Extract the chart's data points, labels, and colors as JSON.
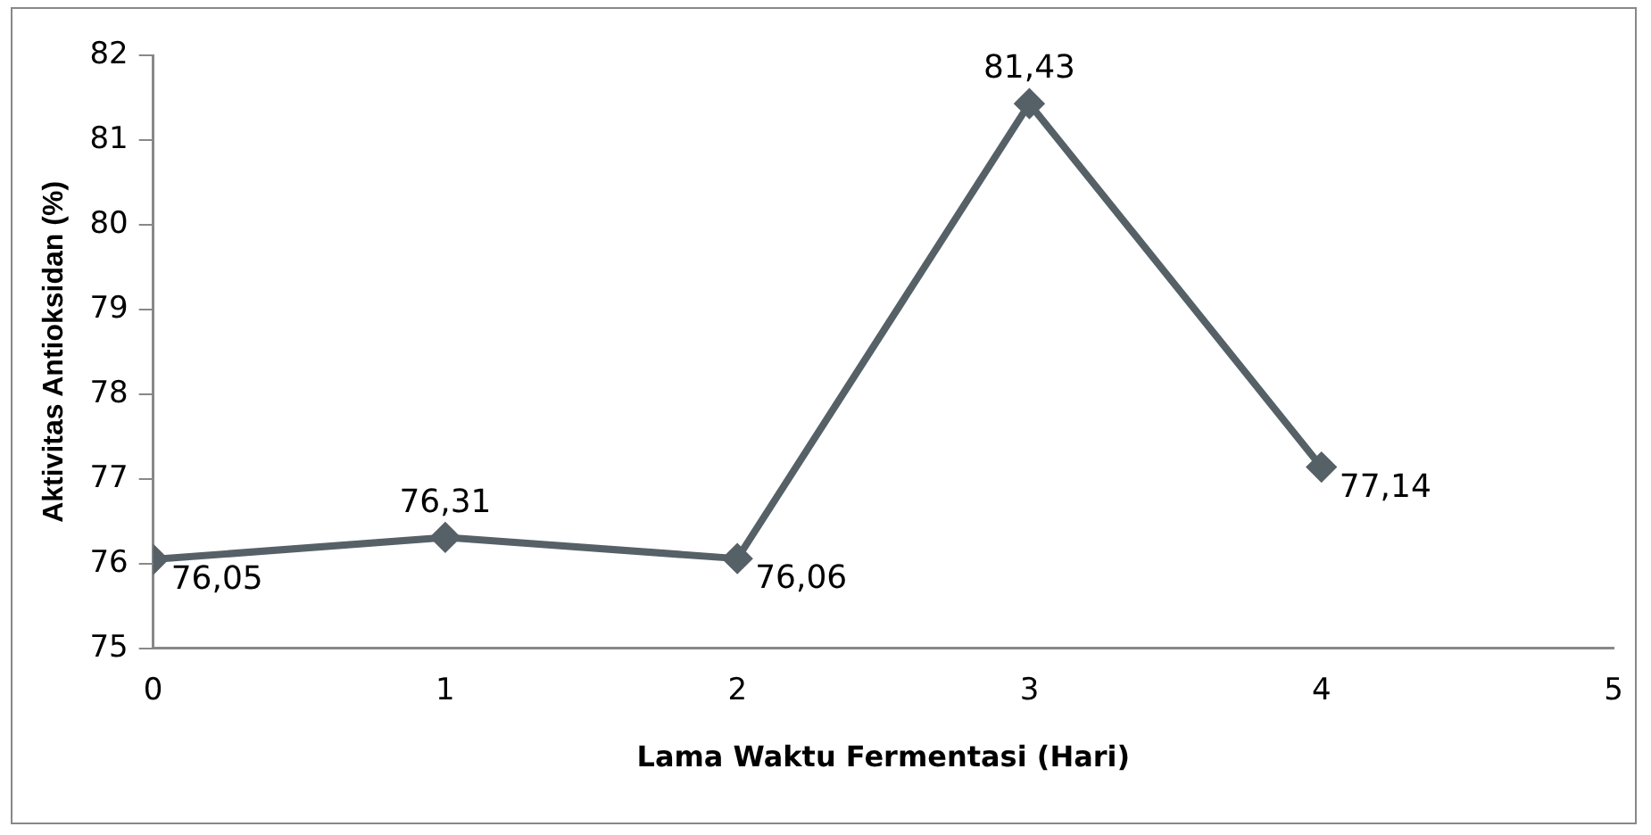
{
  "chart_data": {
    "type": "line",
    "xlabel": "Lama Waktu Fermentasi (Hari)",
    "ylabel": "Aktivitas Antioksidan (%)",
    "x": [
      0,
      1,
      2,
      3,
      4
    ],
    "series": [
      {
        "color": "#566167",
        "values": [
          76.05,
          76.31,
          76.06,
          81.43,
          77.14
        ],
        "value_labels": [
          "76,05",
          "76,31",
          "76,06",
          "81,43",
          "77,14"
        ]
      }
    ],
    "xlim": [
      0,
      5
    ],
    "xticks": [
      0,
      1,
      2,
      3,
      4,
      5
    ],
    "ylim": [
      75,
      82
    ],
    "yticks": [
      75,
      76,
      77,
      78,
      79,
      80,
      81,
      82
    ],
    "grid": false,
    "legend": false,
    "marker": "diamond",
    "line_style": "solid"
  }
}
